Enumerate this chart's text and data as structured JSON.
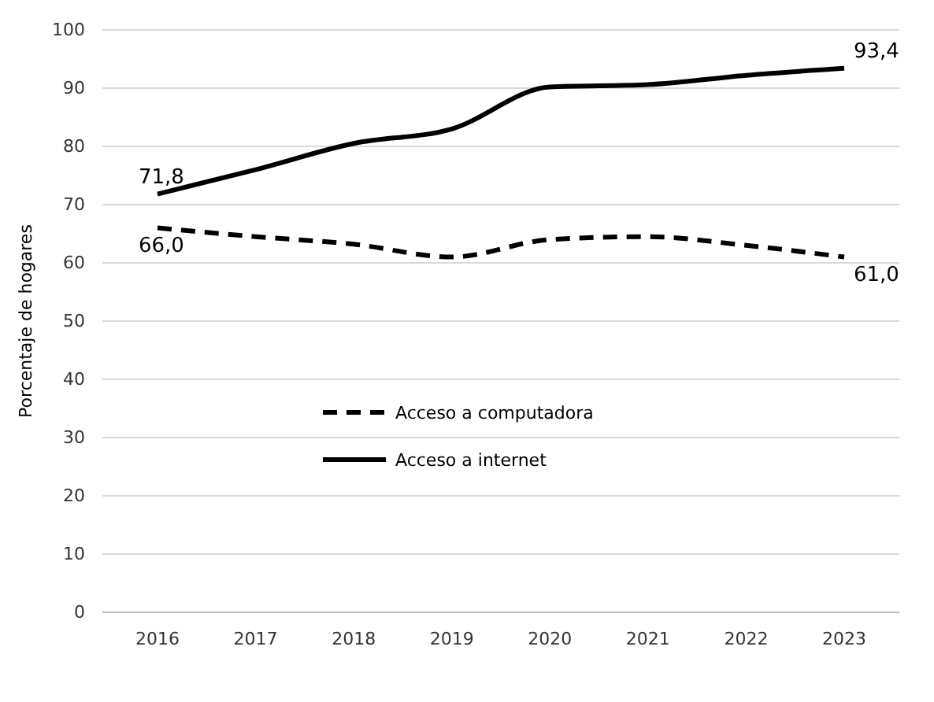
{
  "chart_data": {
    "type": "line",
    "ylabel": "Porcentaje de hogares",
    "categories": [
      "2016",
      "2017",
      "2018",
      "2019",
      "2020",
      "2021",
      "2022",
      "2023"
    ],
    "series": [
      {
        "name": "Acceso a computadora",
        "color": "#000000",
        "line_style": "dashed",
        "values": [
          66.0,
          64.5,
          63.2,
          61.0,
          64.0,
          64.5,
          63.0,
          61.0
        ]
      },
      {
        "name": "Acceso a internet",
        "color": "#000000",
        "line_style": "solid",
        "values": [
          71.8,
          76.0,
          80.5,
          83.0,
          90.2,
          90.6,
          92.2,
          93.4
        ]
      }
    ],
    "ylim": [
      0,
      100
    ],
    "yticks": [
      0,
      10,
      20,
      30,
      40,
      50,
      60,
      70,
      80,
      90,
      100
    ],
    "grid": "y",
    "legend": "center left",
    "marker": "none",
    "annotations": [
      {
        "text": "71,8",
        "x": "2016",
        "y": 71.8
      },
      {
        "text": "66,0",
        "x": "2016",
        "y": 66.0
      },
      {
        "text": "93,4",
        "x": "2023",
        "y": 93.4
      },
      {
        "text": "61,0",
        "x": "2023",
        "y": 61.0
      }
    ]
  }
}
